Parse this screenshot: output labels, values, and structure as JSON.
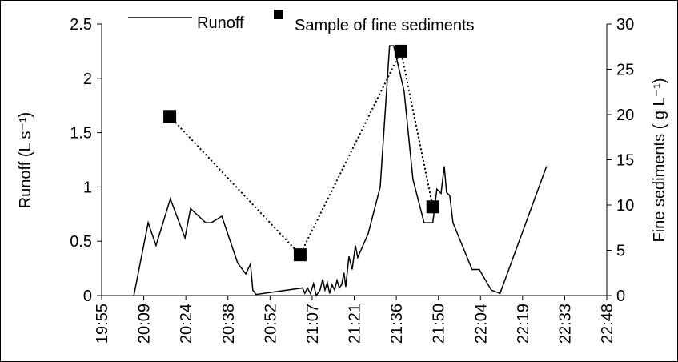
{
  "chart_data": {
    "type": "line",
    "y_label": "Runoff (L s⁻¹)",
    "y2_label": "Fine sediments ( g L⁻¹)",
    "xlim": [
      1195.2,
      1368
    ],
    "xticks": [
      {
        "value": 1195.2,
        "label": "19:55"
      },
      {
        "value": 1209.6,
        "label": "20:09"
      },
      {
        "value": 1224,
        "label": "20:24"
      },
      {
        "value": 1238.4,
        "label": "20:38"
      },
      {
        "value": 1252.8,
        "label": "20:52"
      },
      {
        "value": 1267.2,
        "label": "21:07"
      },
      {
        "value": 1281.6,
        "label": "21:21"
      },
      {
        "value": 1296,
        "label": "21:36"
      },
      {
        "value": 1310.4,
        "label": "21:50"
      },
      {
        "value": 1324.8,
        "label": "22:04"
      },
      {
        "value": 1339.2,
        "label": "22:19"
      },
      {
        "value": 1353.6,
        "label": "22:33"
      },
      {
        "value": 1368,
        "label": "22:48"
      }
    ],
    "ylim": [
      0,
      2.5
    ],
    "yticks": [
      0,
      0.5,
      1,
      1.5,
      2,
      2.5
    ],
    "y2lim": [
      0,
      30
    ],
    "y2ticks": [
      0,
      5,
      10,
      15,
      20,
      25,
      30
    ],
    "series": [
      {
        "name": "Runoff",
        "color": "#000000",
        "x": [
          1206.2,
          1211.1,
          1213.8,
          1218.7,
          1223.7,
          1225.6,
          1230.8,
          1232.7,
          1236.3,
          1241.7,
          1244.5,
          1246.1,
          1246.9,
          1248.0,
          1263.9,
          1264.7,
          1265.6,
          1266.6,
          1267.7,
          1268.6,
          1269.9,
          1270.8,
          1271.6,
          1272.4,
          1273.2,
          1274.0,
          1274.9,
          1275.7,
          1276.5,
          1277.3,
          1278.1,
          1278.7,
          1279.8,
          1280.9,
          1282.0,
          1282.8,
          1286.4,
          1290.5,
          1293.7,
          1295.1,
          1298.7,
          1301.7,
          1305.5,
          1308.5,
          1309.9,
          1311.3,
          1312.4,
          1313.2,
          1314.3,
          1315.4,
          1319.8,
          1321.9,
          1324.4,
          1328.5,
          1331.5,
          1347.4
        ],
        "values": [
          0,
          0.67,
          0.46,
          0.89,
          0.53,
          0.8,
          0.67,
          0.67,
          0.73,
          0.3,
          0.2,
          0.29,
          0.05,
          0.01,
          0.07,
          0.02,
          0.07,
          0.02,
          0.11,
          0,
          0.05,
          0.15,
          0.05,
          0.12,
          0.02,
          0.1,
          0.05,
          0.14,
          0.07,
          0.1,
          0.21,
          0.08,
          0.36,
          0.24,
          0.46,
          0.35,
          0.57,
          1.0,
          2.3,
          2.3,
          1.88,
          1.07,
          0.67,
          0.67,
          0.98,
          0.94,
          1.19,
          0.95,
          0.92,
          0.67,
          0.38,
          0.24,
          0.24,
          0.05,
          0.02,
          1.19
        ]
      },
      {
        "name": "Sample of fine sediments",
        "color": "#000000",
        "axis": "y2",
        "x": [
          1218.5,
          1263.1,
          1297.6,
          1308.5
        ],
        "values": [
          19.8,
          4.5,
          27.0,
          9.8
        ]
      }
    ]
  }
}
